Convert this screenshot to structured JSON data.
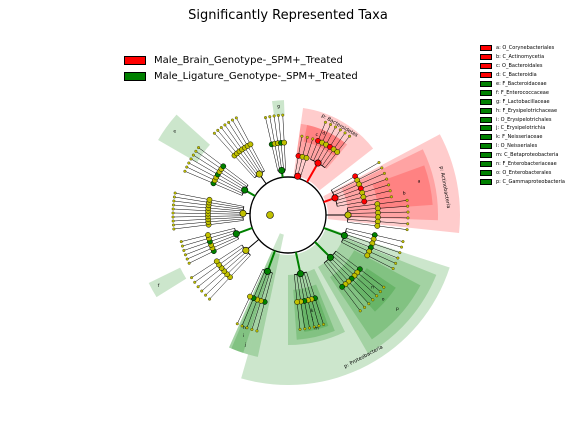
{
  "title": "Significantly Represented Taxa",
  "colors": {
    "red": "#ff0000",
    "green": "#008000",
    "node": "#c0c000"
  },
  "groups": [
    {
      "label": "Male_Brain_Genotype-_SPM+_Treated",
      "color": "#ff0000"
    },
    {
      "label": "Male_Ligature_Genotype-_SPM+_Treated",
      "color": "#008000"
    }
  ],
  "key": [
    {
      "text": "a: O_Corynebacteriales",
      "color": "#ff0000"
    },
    {
      "text": "b: C_Actinomycetia",
      "color": "#ff0000"
    },
    {
      "text": "c: O_Bacteroidales",
      "color": "#ff0000"
    },
    {
      "text": "d: C_Bacteroidia",
      "color": "#ff0000"
    },
    {
      "text": "e: F_Bacteroidaceae",
      "color": "#008000"
    },
    {
      "text": "f: F_Enterococcaceae",
      "color": "#008000"
    },
    {
      "text": "g: F_Lactobacillaceae",
      "color": "#008000"
    },
    {
      "text": "h: F_Erysipelotrichaceae",
      "color": "#008000"
    },
    {
      "text": "i: O_Erysipelotrichales",
      "color": "#008000"
    },
    {
      "text": "j: C_Erysipelotrichia",
      "color": "#008000"
    },
    {
      "text": "k: F_Neisseriaceae",
      "color": "#008000"
    },
    {
      "text": "l: O_Neisseriales",
      "color": "#008000"
    },
    {
      "text": "m: C_Betaproteobacteria",
      "color": "#008000"
    },
    {
      "text": "n: F_Enterobacteriaceae",
      "color": "#008000"
    },
    {
      "text": "o: O_Enterobacterales",
      "color": "#008000"
    },
    {
      "text": "p: C_Gammaproteobacteria",
      "color": "#008000"
    }
  ],
  "phyla": [
    {
      "name": "p: Bacteroidetes",
      "color": "#ff0000"
    },
    {
      "name": "p: Actinobacteria",
      "color": "#ff0000"
    },
    {
      "name": "p: Proteobacteria",
      "color": "#008000"
    }
  ],
  "sectors": [
    {
      "letter": "d",
      "color": "#ff0000"
    },
    {
      "letter": "c",
      "color": "#ff0000"
    },
    {
      "letter": "b",
      "color": "#ff0000"
    },
    {
      "letter": "a",
      "color": "#ff0000"
    },
    {
      "letter": "e",
      "color": "#008000"
    },
    {
      "letter": "f",
      "color": "#008000"
    },
    {
      "letter": "j",
      "color": "#008000"
    },
    {
      "letter": "i",
      "color": "#008000"
    },
    {
      "letter": "h",
      "color": "#008000"
    },
    {
      "letter": "g",
      "color": "#008000"
    },
    {
      "letter": "m",
      "color": "#008000"
    },
    {
      "letter": "l",
      "color": "#008000"
    },
    {
      "letter": "k",
      "color": "#008000"
    },
    {
      "letter": "p",
      "color": "#008000"
    },
    {
      "letter": "o",
      "color": "#008000"
    },
    {
      "letter": "n",
      "color": "#008000"
    }
  ]
}
